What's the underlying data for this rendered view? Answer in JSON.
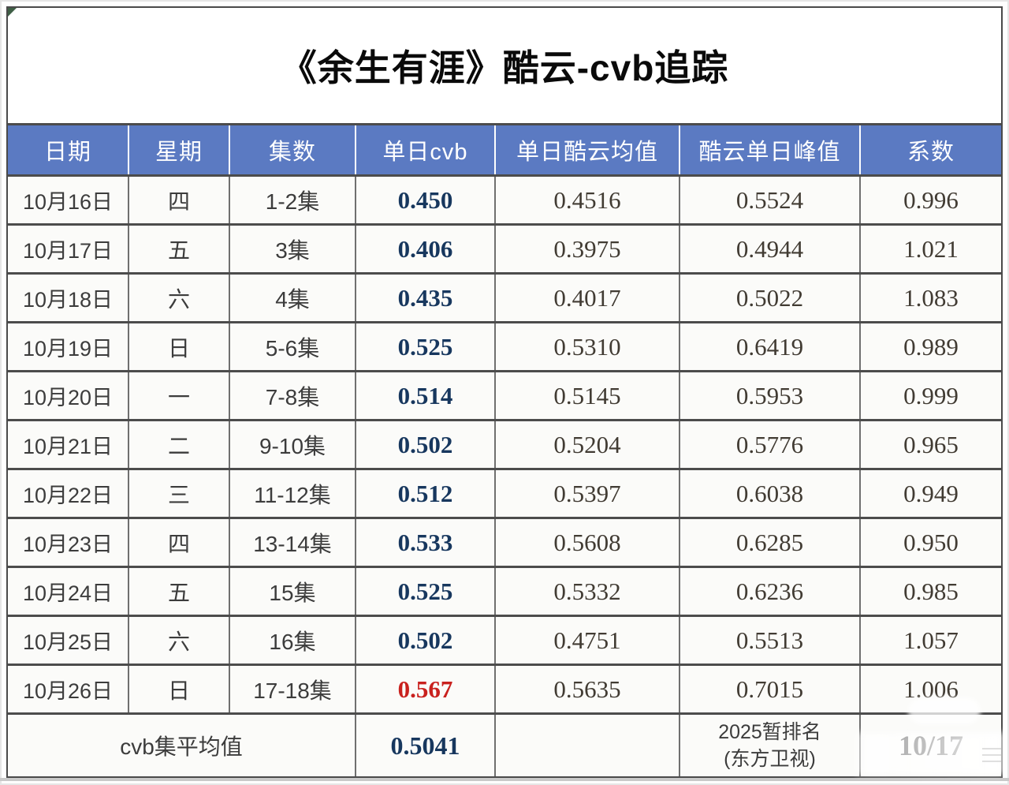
{
  "title": "《余生有涯》酷云-cvb追踪",
  "colors": {
    "header_blue": "#5b7ac2",
    "navy": "#17375e",
    "red": "#c9211e",
    "sans_text": "#3c3c3c",
    "serif_text": "#413b33",
    "hline": "#4c4c4c",
    "vline": "#6f6f6f"
  },
  "table": {
    "headers": [
      "日期",
      "星期",
      "集数",
      "单日cvb",
      "单日酷云均值",
      "酷云单日峰值",
      "系数"
    ],
    "rows": [
      {
        "date": "10月16日",
        "weekday": "四",
        "episodes": "1-2集",
        "cvb": "0.450",
        "kuyun_avg": "0.4516",
        "kuyun_peak": "0.5524",
        "coef": "0.996",
        "highlight": false
      },
      {
        "date": "10月17日",
        "weekday": "五",
        "episodes": "3集",
        "cvb": "0.406",
        "kuyun_avg": "0.3975",
        "kuyun_peak": "0.4944",
        "coef": "1.021",
        "highlight": false
      },
      {
        "date": "10月18日",
        "weekday": "六",
        "episodes": "4集",
        "cvb": "0.435",
        "kuyun_avg": "0.4017",
        "kuyun_peak": "0.5022",
        "coef": "1.083",
        "highlight": false
      },
      {
        "date": "10月19日",
        "weekday": "日",
        "episodes": "5-6集",
        "cvb": "0.525",
        "kuyun_avg": "0.5310",
        "kuyun_peak": "0.6419",
        "coef": "0.989",
        "highlight": false
      },
      {
        "date": "10月20日",
        "weekday": "一",
        "episodes": "7-8集",
        "cvb": "0.514",
        "kuyun_avg": "0.5145",
        "kuyun_peak": "0.5953",
        "coef": "0.999",
        "highlight": false
      },
      {
        "date": "10月21日",
        "weekday": "二",
        "episodes": "9-10集",
        "cvb": "0.502",
        "kuyun_avg": "0.5204",
        "kuyun_peak": "0.5776",
        "coef": "0.965",
        "highlight": false
      },
      {
        "date": "10月22日",
        "weekday": "三",
        "episodes": "11-12集",
        "cvb": "0.512",
        "kuyun_avg": "0.5397",
        "kuyun_peak": "0.6038",
        "coef": "0.949",
        "highlight": false
      },
      {
        "date": "10月23日",
        "weekday": "四",
        "episodes": "13-14集",
        "cvb": "0.533",
        "kuyun_avg": "0.5608",
        "kuyun_peak": "0.6285",
        "coef": "0.950",
        "highlight": false
      },
      {
        "date": "10月24日",
        "weekday": "五",
        "episodes": "15集",
        "cvb": "0.525",
        "kuyun_avg": "0.5332",
        "kuyun_peak": "0.6236",
        "coef": "0.985",
        "highlight": false
      },
      {
        "date": "10月25日",
        "weekday": "六",
        "episodes": "16集",
        "cvb": "0.502",
        "kuyun_avg": "0.4751",
        "kuyun_peak": "0.5513",
        "coef": "1.057",
        "highlight": false
      },
      {
        "date": "10月26日",
        "weekday": "日",
        "episodes": "17-18集",
        "cvb": "0.567",
        "kuyun_avg": "0.5635",
        "kuyun_peak": "0.7015",
        "coef": "1.006",
        "highlight": true
      }
    ],
    "footer": {
      "label": "cvb集平均值",
      "cvb_avg": "0.5041",
      "ranking": [
        "2025暂排名",
        "(东方卫视)"
      ],
      "ranking_value": "10/17"
    }
  },
  "chart_data": {
    "type": "table",
    "title": "《余生有涯》酷云-cvb追踪",
    "columns": [
      "日期",
      "星期",
      "集数",
      "单日cvb",
      "单日酷云均值",
      "酷云单日峰值",
      "系数"
    ],
    "rows": [
      [
        "10月16日",
        "四",
        "1-2集",
        "0.450",
        "0.4516",
        "0.5524",
        "0.996"
      ],
      [
        "10月17日",
        "五",
        "3集",
        "0.406",
        "0.3975",
        "0.4944",
        "1.021"
      ],
      [
        "10月18日",
        "六",
        "4集",
        "0.435",
        "0.4017",
        "0.5022",
        "1.083"
      ],
      [
        "10月19日",
        "日",
        "5-6集",
        "0.525",
        "0.5310",
        "0.6419",
        "0.989"
      ],
      [
        "10月20日",
        "一",
        "7-8集",
        "0.514",
        "0.5145",
        "0.5953",
        "0.999"
      ],
      [
        "10月21日",
        "二",
        "9-10集",
        "0.502",
        "0.5204",
        "0.5776",
        "0.965"
      ],
      [
        "10月22日",
        "三",
        "11-12集",
        "0.512",
        "0.5397",
        "0.6038",
        "0.949"
      ],
      [
        "10月23日",
        "四",
        "13-14集",
        "0.533",
        "0.5608",
        "0.6285",
        "0.950"
      ],
      [
        "10月24日",
        "五",
        "15集",
        "0.525",
        "0.5332",
        "0.6236",
        "0.985"
      ],
      [
        "10月25日",
        "六",
        "16集",
        "0.502",
        "0.4751",
        "0.5513",
        "1.057"
      ],
      [
        "10月26日",
        "日",
        "17-18集",
        "0.567",
        "0.5635",
        "0.7015",
        "1.006"
      ]
    ],
    "footer_row": [
      "cvb集平均值",
      "0.5041",
      "",
      "2025暂排名(东方卫视)",
      "10/17"
    ]
  }
}
